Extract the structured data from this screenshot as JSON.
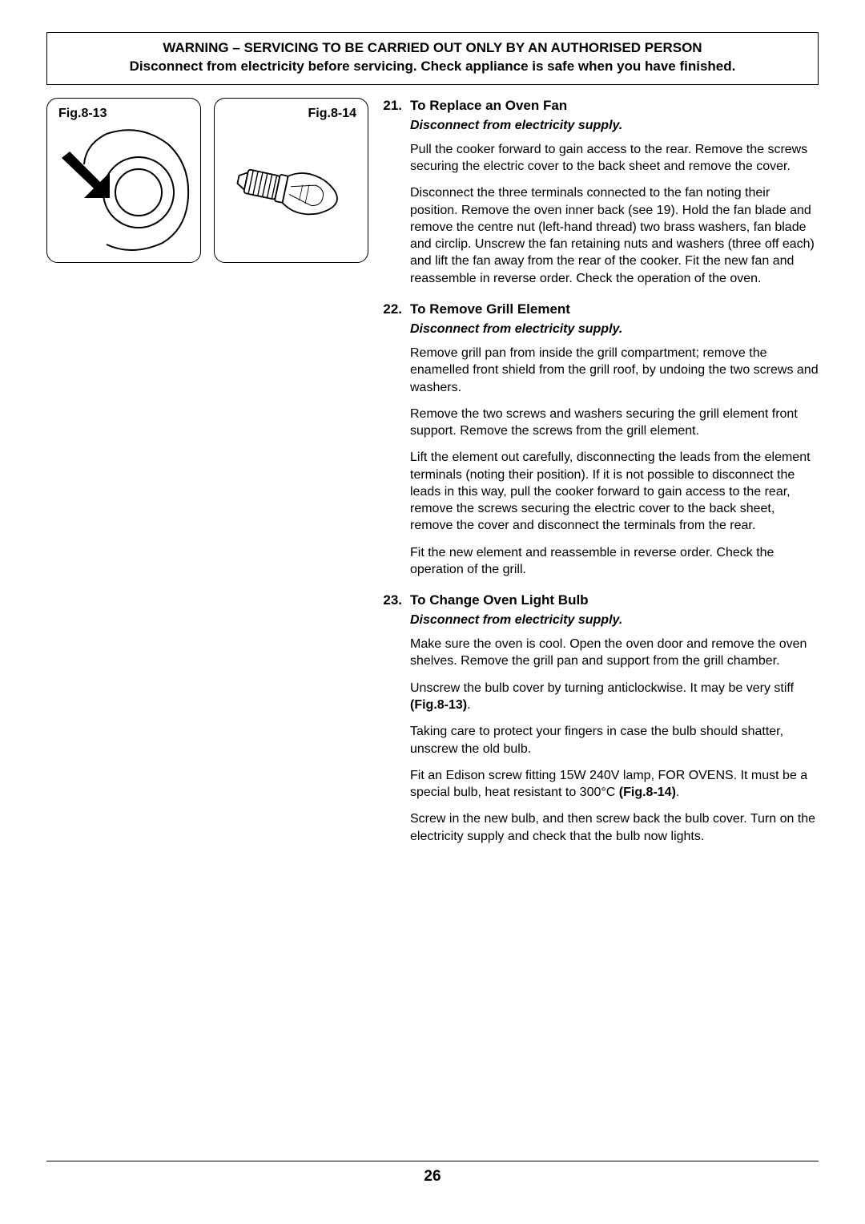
{
  "warning": {
    "line1": "WARNING – SERVICING TO BE CARRIED OUT ONLY BY AN AUTHORISED PERSON",
    "line2": "Disconnect from electricity before servicing. Check appliance is safe when you have finished."
  },
  "figures": {
    "left_label": "Fig.8-13",
    "right_label": "Fig.8-14"
  },
  "sections": [
    {
      "num": "21.",
      "title": "To Replace an Oven Fan",
      "warn": "Disconnect from electricity supply.",
      "paras": [
        "Pull the cooker forward to gain access to the rear. Remove the screws securing the electric cover to the back sheet and remove the cover.",
        "Disconnect the three terminals connected to the fan noting their position. Remove the oven inner back (see 19). Hold the fan blade and remove the centre nut (left-hand thread) two brass washers, fan blade and circlip. Unscrew the fan retaining nuts and washers (three off each) and lift the fan away from the rear of the cooker. Fit the new fan and reassemble in reverse order. Check the operation of the oven."
      ]
    },
    {
      "num": "22.",
      "title": "To Remove Grill Element",
      "warn": "Disconnect from electricity supply.",
      "paras": [
        "Remove grill pan from inside the grill compartment; remove the enamelled front shield from the grill roof, by undoing the two screws and washers.",
        "Remove the two screws and washers securing the grill element front support. Remove the screws from the grill element.",
        "Lift the element out carefully, disconnecting the leads from the element terminals (noting their position). If it is not possible to disconnect the leads in this way, pull the cooker forward to gain access to the rear, remove the screws securing the electric cover to the back sheet, remove the cover and disconnect the terminals from the rear.",
        "Fit the new element and reassemble in reverse order. Check the operation of the grill."
      ]
    },
    {
      "num": "23.",
      "title": "To Change Oven Light Bulb",
      "warn": "Disconnect from electricity supply.",
      "paras_html": [
        "Make sure the oven is cool. Open the oven door and remove the oven shelves. Remove the grill pan and support from the grill chamber.",
        "Unscrew the bulb cover by turning anticlockwise. It may be very stiff <b>(Fig.8-13)</b>.",
        "Taking care to protect your fingers in case the bulb should shatter, unscrew the old bulb.",
        "Fit an Edison screw fitting 15W 240V lamp, FOR OVENS. It must be a special bulb, heat resistant to 300°C <b>(Fig.8-14)</b>.",
        "Screw in the new bulb, and then screw back the bulb cover. Turn on the electricity supply and check that the bulb now lights."
      ]
    }
  ],
  "page_number": "26"
}
